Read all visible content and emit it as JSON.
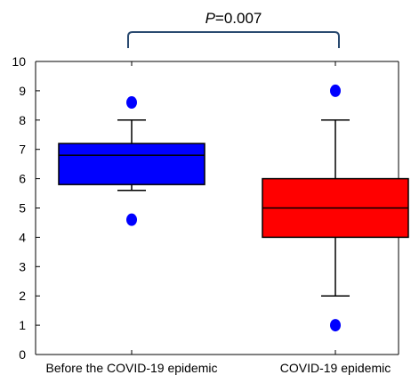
{
  "chart_data": {
    "type": "box",
    "ylim": [
      0,
      10
    ],
    "yticks": [
      "0",
      "1",
      "2",
      "3",
      "4",
      "5",
      "6",
      "7",
      "8",
      "9",
      "10"
    ],
    "grid": false,
    "categories": [
      "Before the COVID-19 epidemic",
      "COVID-19 epidemic"
    ],
    "boxes": [
      {
        "category": "Before the COVID-19 epidemic",
        "color": "#0000ff",
        "whisker_low": 5.6,
        "q1": 5.8,
        "median": 6.8,
        "q3": 7.2,
        "whisker_high": 8.0,
        "outliers": [
          8.6,
          4.6
        ]
      },
      {
        "category": "COVID-19 epidemic",
        "color": "#ff0000",
        "whisker_low": 2.0,
        "q1": 4.0,
        "median": 5.0,
        "q3": 6.0,
        "whisker_high": 8.0,
        "outliers": [
          9.0,
          1.0
        ]
      }
    ],
    "annotation": {
      "text_prefix": "P",
      "text_value": "=0.007",
      "bracket_color": "#2a4a70"
    },
    "outlier_color": "#0000ff"
  }
}
